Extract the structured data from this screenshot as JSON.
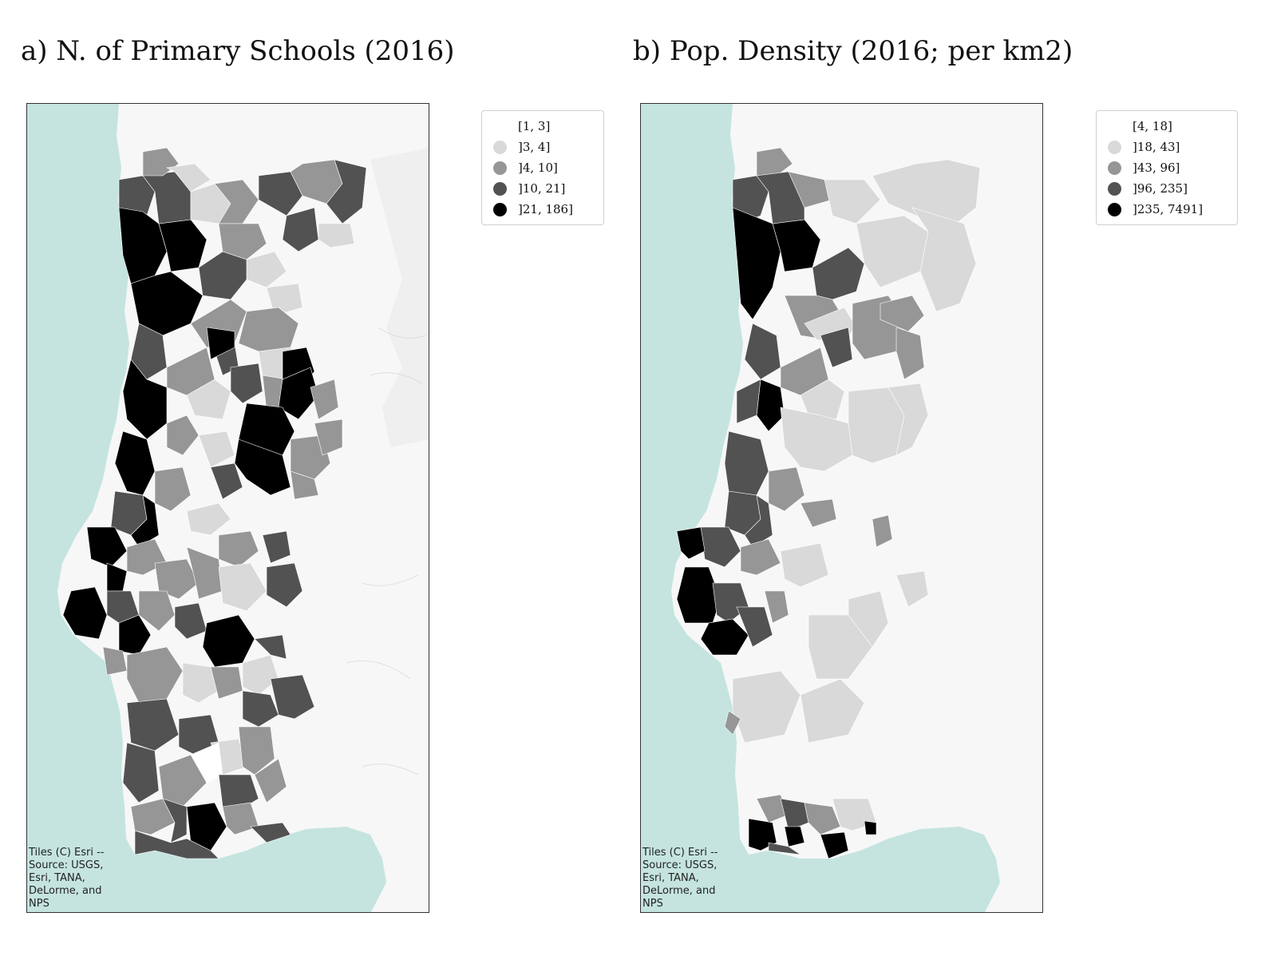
{
  "panels": [
    {
      "title": "a) N. of Primary Schools (2016)",
      "attribution": "Tiles (C) Esri --\nSource: USGS,\nEsri, TANA,\nDeLorme, and\nNPS",
      "legend": [
        {
          "label": "[1, 3]",
          "color": "#ffffff"
        },
        {
          "label": "]3, 4]",
          "color": "#d9d9d9"
        },
        {
          "label": "]4, 10]",
          "color": "#969696"
        },
        {
          "label": "]10, 21]",
          "color": "#525252"
        },
        {
          "label": "]21, 186]",
          "color": "#000000"
        }
      ]
    },
    {
      "title": "b) Pop. Density (2016; per km2)",
      "attribution": "Tiles (C) Esri --\nSource: USGS,\nEsri, TANA,\nDeLorme, and\nNPS",
      "legend": [
        {
          "label": "[4, 18]",
          "color": "#ffffff"
        },
        {
          "label": "]18, 43]",
          "color": "#d9d9d9"
        },
        {
          "label": "]43, 96]",
          "color": "#969696"
        },
        {
          "label": "]96, 235]",
          "color": "#525252"
        },
        {
          "label": "]235, 7491]",
          "color": "#000000"
        }
      ]
    }
  ],
  "colors": {
    "sea": "#c5e4df",
    "land": "#f7f7f7"
  }
}
